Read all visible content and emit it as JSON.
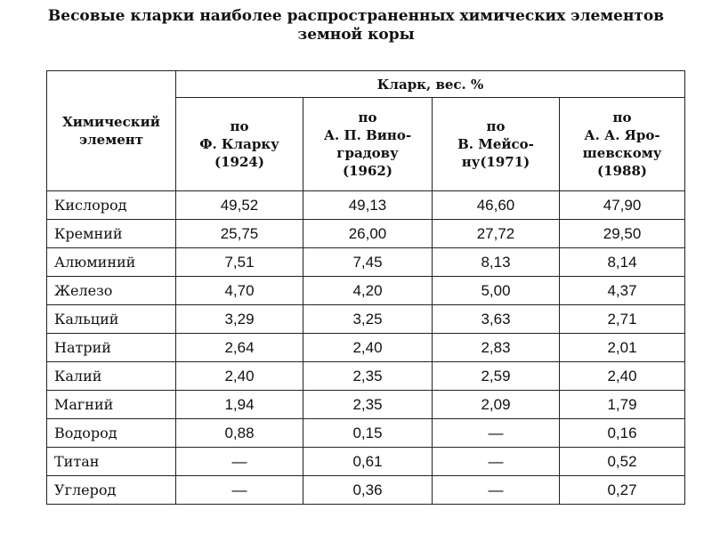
{
  "title": {
    "line1": "Весовые кларки наиболее распространенных химических элементов",
    "line2": "земной коры"
  },
  "table": {
    "header": {
      "element": [
        "Химический",
        "элемент"
      ],
      "group": "Кларк, вес. %",
      "columns": [
        [
          "по",
          "Ф. Кларку",
          "(1924)"
        ],
        [
          "по",
          "А. П. Вино-",
          "градову",
          "(1962)"
        ],
        [
          "по",
          "В. Мейсо-",
          "ну(1971)"
        ],
        [
          "по",
          "А. А. Яро-",
          "шевскому",
          "(1988)"
        ]
      ]
    },
    "rows": [
      {
        "element": "Кислород",
        "values": [
          "49,52",
          "49,13",
          "46,60",
          "47,90"
        ]
      },
      {
        "element": "Кремний",
        "values": [
          "25,75",
          "26,00",
          "27,72",
          "29,50"
        ]
      },
      {
        "element": "Алюминий",
        "values": [
          "7,51",
          "7,45",
          "8,13",
          "8,14"
        ]
      },
      {
        "element": "Железо",
        "values": [
          "4,70",
          "4,20",
          "5,00",
          "4,37"
        ]
      },
      {
        "element": "Кальций",
        "values": [
          "3,29",
          "3,25",
          "3,63",
          "2,71"
        ]
      },
      {
        "element": "Натрий",
        "values": [
          "2,64",
          "2,40",
          "2,83",
          "2,01"
        ]
      },
      {
        "element": "Калий",
        "values": [
          "2,40",
          "2,35",
          "2,59",
          "2,40"
        ]
      },
      {
        "element": "Магний",
        "values": [
          "1,94",
          "2,35",
          "2,09",
          "1,79"
        ]
      },
      {
        "element": "Водород",
        "values": [
          "0,88",
          "0,15",
          "—",
          "0,16"
        ]
      },
      {
        "element": "Титан",
        "values": [
          "—",
          "0,61",
          "—",
          "0,52"
        ]
      },
      {
        "element": "Углерод",
        "values": [
          "—",
          "0,36",
          "—",
          "0,27"
        ]
      }
    ]
  }
}
